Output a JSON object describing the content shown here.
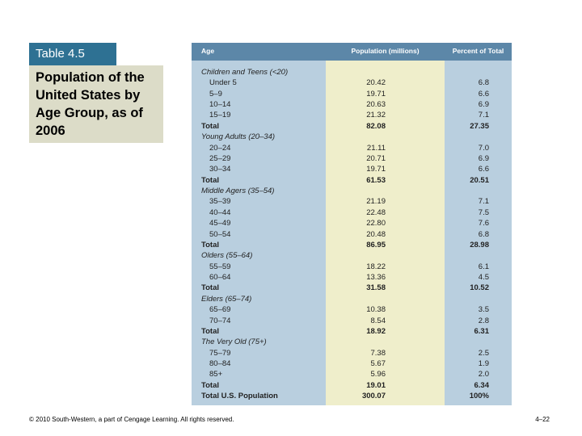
{
  "slide": {
    "label": "Table 4.5",
    "title": "Population of the United States by Age Group, as of 2006",
    "footer": "© 2010 South-Western, a part of Cengage Learning. All rights reserved.",
    "page": "4–22"
  },
  "table": {
    "header": [
      "Age",
      "Population (millions)",
      "Percent of Total"
    ],
    "groups": [
      {
        "label": "Children and Teens (<20)",
        "rows": [
          [
            "Under 5",
            "20.42",
            "6.8"
          ],
          [
            "5–9",
            "19.71",
            "6.6"
          ],
          [
            "10–14",
            "20.63",
            "6.9"
          ],
          [
            "15–19",
            "21.32",
            "7.1"
          ]
        ],
        "total": [
          "Total",
          "82.08",
          "27.35"
        ]
      },
      {
        "label": "Young Adults (20–34)",
        "rows": [
          [
            "20–24",
            "21.11",
            "7.0"
          ],
          [
            "25–29",
            "20.71",
            "6.9"
          ],
          [
            "30–34",
            "19.71",
            "6.6"
          ]
        ],
        "total": [
          "Total",
          "61.53",
          "20.51"
        ]
      },
      {
        "label": "Middle Agers (35–54)",
        "rows": [
          [
            "35–39",
            "21.19",
            "7.1"
          ],
          [
            "40–44",
            "22.48",
            "7.5"
          ],
          [
            "45–49",
            "22.80",
            "7.6"
          ],
          [
            "50–54",
            "20.48",
            "6.8"
          ]
        ],
        "total": [
          "Total",
          "86.95",
          "28.98"
        ]
      },
      {
        "label": "Olders (55–64)",
        "rows": [
          [
            "55–59",
            "18.22",
            "6.1"
          ],
          [
            "60–64",
            "13.36",
            "4.5"
          ]
        ],
        "total": [
          "Total",
          "31.58",
          "10.52"
        ]
      },
      {
        "label": "Elders (65–74)",
        "rows": [
          [
            "65–69",
            "10.38",
            "3.5"
          ],
          [
            "70–74",
            "8.54",
            "2.8"
          ]
        ],
        "total": [
          "Total",
          "18.92",
          "6.31"
        ]
      },
      {
        "label": "The Very Old (75+)",
        "rows": [
          [
            "75–79",
            "7.38",
            "2.5"
          ],
          [
            "80–84",
            "5.67",
            "1.9"
          ],
          [
            "85+",
            "5.96",
            "2.0"
          ]
        ],
        "total": [
          "Total",
          "19.01",
          "6.34"
        ]
      }
    ],
    "grand_total": [
      "Total U.S. Population",
      "300.07",
      "100%"
    ]
  }
}
